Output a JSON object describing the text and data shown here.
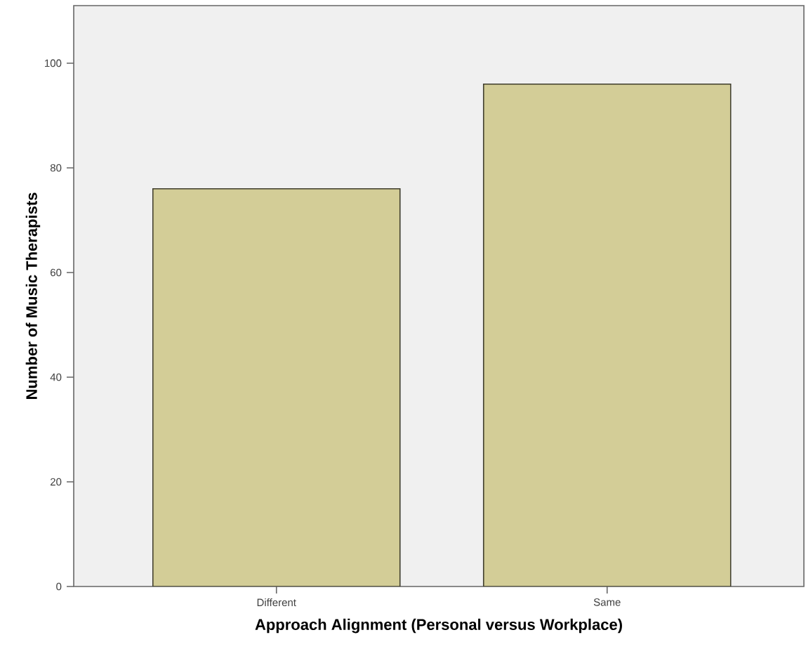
{
  "chart_data": {
    "type": "bar",
    "xlabel": "Approach Alignment (Personal versus Workplace)",
    "ylabel": "Number of Music Therapists",
    "categories": [
      "Different",
      "Same"
    ],
    "values": [
      76,
      96
    ],
    "color": "#d3cd97",
    "ylim": [
      0,
      111
    ],
    "yticks": [
      0,
      20,
      40,
      60,
      80,
      100
    ]
  }
}
